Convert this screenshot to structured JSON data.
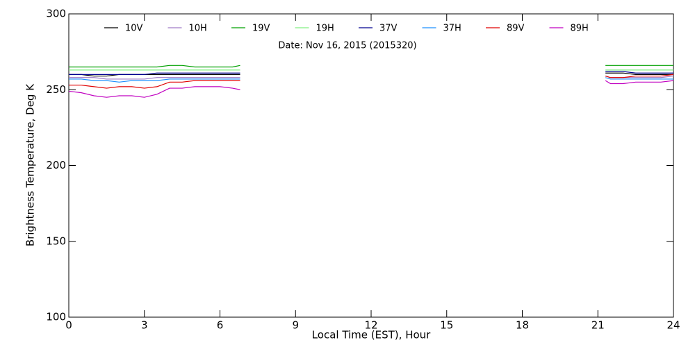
{
  "chart_data": {
    "type": "line",
    "annotation": "Date: Nov 16, 2015 (2015320)",
    "x_label": "Local Time (EST), Hour",
    "y_label": "Brightness Temperature, Deg K",
    "x": [
      0,
      0.5,
      1,
      1.5,
      2,
      2.5,
      3,
      3.5,
      4,
      4.5,
      5,
      5.5,
      6,
      6.5,
      6.8,
      14,
      21.3,
      21.5,
      22,
      22.5,
      23,
      23.5,
      24
    ],
    "series": [
      {
        "name": "10V",
        "color": "#000000",
        "values": [
          260,
          260,
          259,
          259,
          260,
          260,
          260,
          260,
          260,
          260,
          260,
          260,
          260,
          260,
          260,
          null,
          261,
          261,
          261,
          260,
          260,
          260,
          260
        ]
      },
      {
        "name": "10H",
        "color": "#a07cc8",
        "values": [
          258,
          258,
          258,
          257,
          257,
          257,
          257,
          258,
          258,
          258,
          258,
          258,
          258,
          258,
          258,
          null,
          259,
          258,
          258,
          258,
          258,
          258,
          259
        ]
      },
      {
        "name": "19V",
        "color": "#00a000",
        "values": [
          265,
          265,
          265,
          265,
          265,
          265,
          265,
          265,
          266,
          266,
          265,
          265,
          265,
          265,
          266,
          null,
          266,
          266,
          266,
          266,
          266,
          266,
          266
        ]
      },
      {
        "name": "19H",
        "color": "#80f080",
        "values": [
          263,
          263,
          263,
          263,
          263,
          263,
          263,
          263,
          263,
          263,
          263,
          263,
          263,
          263,
          263,
          null,
          263,
          263,
          263,
          263,
          263,
          263,
          263
        ]
      },
      {
        "name": "37V",
        "color": "#000090",
        "values": [
          260,
          260,
          260,
          260,
          260,
          260,
          260,
          261,
          261,
          261,
          261,
          261,
          261,
          261,
          261,
          null,
          262,
          262,
          262,
          261,
          261,
          261,
          261
        ]
      },
      {
        "name": "37H",
        "color": "#1e90ff",
        "values": [
          257,
          257,
          256,
          256,
          255,
          256,
          256,
          256,
          257,
          257,
          257,
          257,
          257,
          257,
          257,
          null,
          258,
          257,
          257,
          257,
          257,
          257,
          257
        ]
      },
      {
        "name": "89V",
        "color": "#e00000",
        "values": [
          253,
          253,
          252,
          251,
          252,
          252,
          251,
          252,
          255,
          255,
          256,
          256,
          256,
          256,
          256,
          null,
          259,
          258,
          258,
          259,
          259,
          259,
          260
        ]
      },
      {
        "name": "89H",
        "color": "#c000c0",
        "values": [
          249,
          248,
          246,
          245,
          246,
          246,
          245,
          247,
          251,
          251,
          252,
          252,
          252,
          251,
          250,
          null,
          256,
          254,
          254,
          255,
          255,
          255,
          256
        ]
      }
    ],
    "xlim": [
      0,
      24
    ],
    "xticks": [
      0,
      3,
      6,
      9,
      12,
      15,
      18,
      21,
      24
    ],
    "ylim": [
      100,
      300
    ],
    "yticks": [
      100,
      150,
      200,
      250,
      300
    ]
  }
}
